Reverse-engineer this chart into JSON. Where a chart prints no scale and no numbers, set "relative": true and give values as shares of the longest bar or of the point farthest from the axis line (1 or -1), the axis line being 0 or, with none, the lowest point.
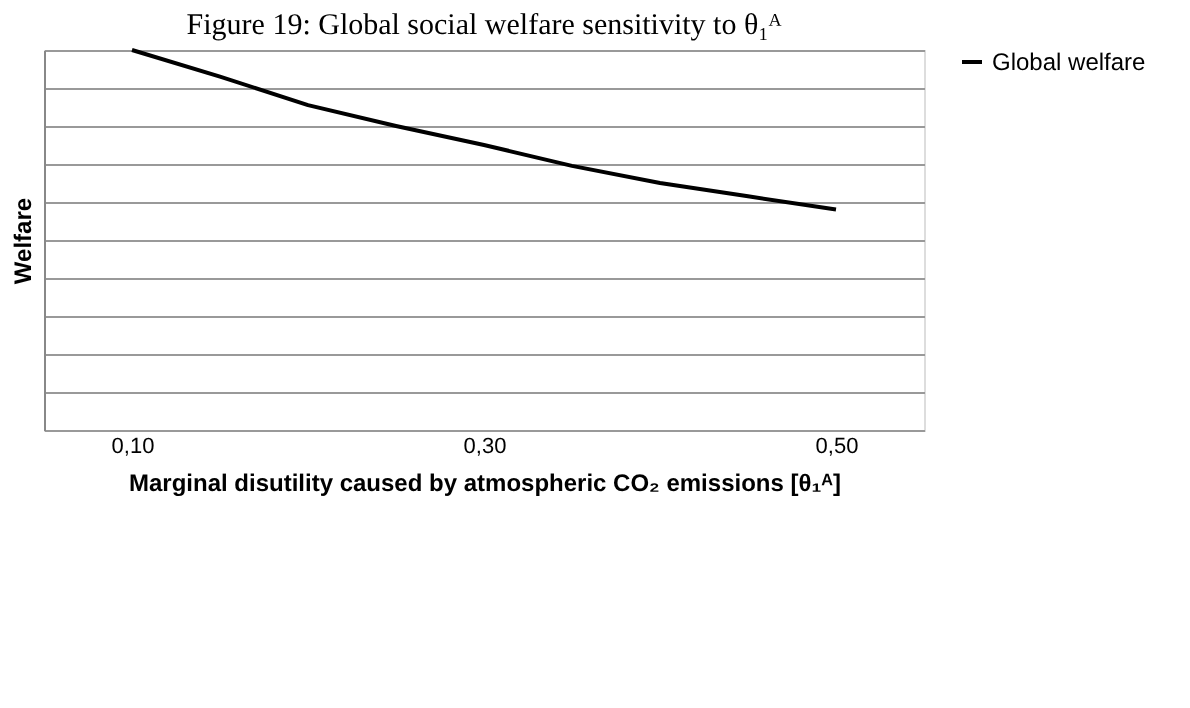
{
  "chart_data": {
    "type": "line",
    "title": "Figure 19: Global social welfare sensitivity to θ₁ᴬ",
    "xlabel": "Marginal disutility caused by atmospheric CO₂ emissions [θ₁ᴬ]",
    "ylabel": "Welfare",
    "relative": true,
    "x": [
      0.1,
      0.15,
      0.2,
      0.25,
      0.3,
      0.35,
      0.4,
      0.45,
      0.5
    ],
    "series": [
      {
        "name": "Global welfare",
        "color": "#000000",
        "values": [
          1,
          0.93,
          0.855,
          0.8,
          0.75,
          0.695,
          0.65,
          0.615,
          0.58
        ]
      }
    ],
    "xlim": [
      0.05,
      0.55
    ],
    "xticks": [
      {
        "value": 0.1,
        "label": "0,10"
      },
      {
        "value": 0.3,
        "label": "0,30"
      },
      {
        "value": 0.5,
        "label": "0,50"
      }
    ],
    "grid": "y",
    "legend": "right",
    "marker": "none",
    "line_style": "solid"
  }
}
